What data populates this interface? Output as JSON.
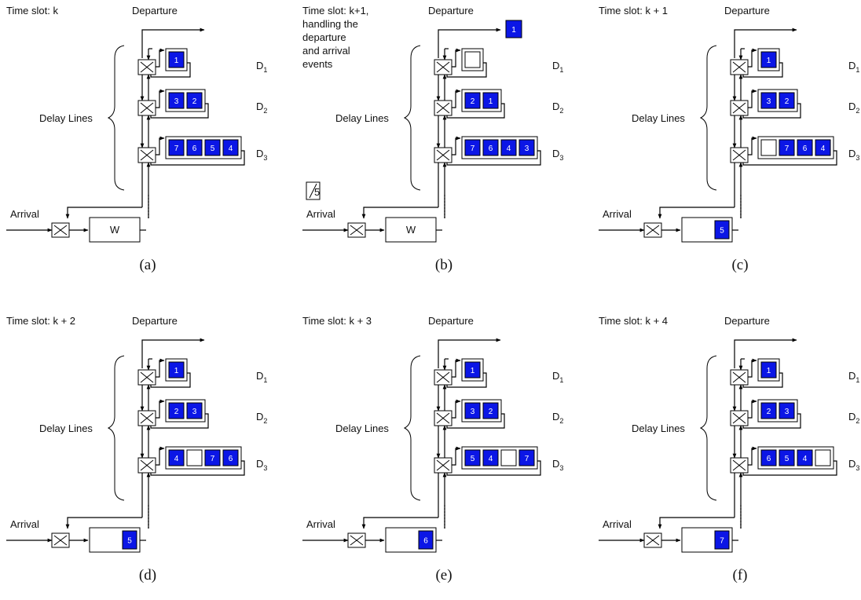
{
  "colors": {
    "packet_fill": "#0b16e6",
    "packet_stroke": "#000000",
    "line": "#000000"
  },
  "labels": {
    "departure": "Departure",
    "arrival": "Arrival",
    "delay_lines": "Delay  Lines",
    "d_main": "D",
    "wait_buffer": "W"
  },
  "panels": [
    {
      "id": "a",
      "caption": "(a)",
      "time_slot": [
        "Time slot: k"
      ],
      "d1": [
        "1"
      ],
      "d2": [
        "3",
        "2"
      ],
      "d3": [
        "7",
        "6",
        "5",
        "4"
      ],
      "w": null,
      "departed": null,
      "arriving": null
    },
    {
      "id": "b",
      "caption": "(b)",
      "time_slot": [
        "Time slot: k+1,",
        "handling the",
        "departure",
        "and arrival",
        "events"
      ],
      "d1": [
        ""
      ],
      "d2": [
        "2",
        "1"
      ],
      "d3": [
        "7",
        "6",
        "4",
        "3"
      ],
      "w": null,
      "departed": "1",
      "arriving": "5"
    },
    {
      "id": "c",
      "caption": "(c)",
      "time_slot": [
        "Time slot: k + 1"
      ],
      "d1": [
        "1"
      ],
      "d2": [
        "3",
        "2"
      ],
      "d3": [
        "",
        "7",
        "6",
        "4"
      ],
      "w": "5",
      "departed": null,
      "arriving": null
    },
    {
      "id": "d",
      "caption": "(d)",
      "time_slot": [
        "Time slot: k + 2"
      ],
      "d1": [
        "1"
      ],
      "d2": [
        "2",
        "3"
      ],
      "d3": [
        "4",
        "",
        "7",
        "6"
      ],
      "w": "5",
      "departed": null,
      "arriving": null
    },
    {
      "id": "e",
      "caption": "(e)",
      "time_slot": [
        "Time slot: k + 3"
      ],
      "d1": [
        "1"
      ],
      "d2": [
        "3",
        "2"
      ],
      "d3": [
        "5",
        "4",
        "",
        "7"
      ],
      "w": "6",
      "departed": null,
      "arriving": null
    },
    {
      "id": "f",
      "caption": "(f)",
      "time_slot": [
        "Time slot: k + 4"
      ],
      "d1": [
        "1"
      ],
      "d2": [
        "2",
        "3"
      ],
      "d3": [
        "6",
        "5",
        "4",
        ""
      ],
      "w": "7",
      "departed": null,
      "arriving": null
    }
  ]
}
